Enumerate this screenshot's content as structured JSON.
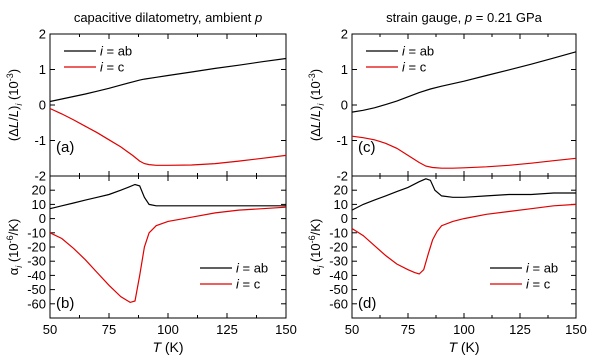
{
  "colors": {
    "ab": "#000000",
    "c": "#e00000"
  },
  "chart_data": [
    {
      "type": "line",
      "title": "capacitive dilatometry, ambient p",
      "panel_label": "(a)",
      "ylabel": "(ΔL/L)_i (10^-3)",
      "xlim": [
        50,
        150
      ],
      "ylim": [
        -2,
        2
      ],
      "xticks": [
        50,
        75,
        100,
        125,
        150
      ],
      "yticks": [
        -2,
        -1,
        0,
        1,
        2
      ],
      "legend_position": "top-left",
      "series": [
        {
          "name": "i = ab",
          "color_key": "ab",
          "x": [
            50,
            55,
            60,
            65,
            70,
            75,
            80,
            85,
            88,
            90,
            95,
            100,
            110,
            120,
            130,
            140,
            150
          ],
          "y": [
            0.1,
            0.17,
            0.24,
            0.31,
            0.39,
            0.47,
            0.56,
            0.65,
            0.7,
            0.73,
            0.78,
            0.83,
            0.93,
            1.03,
            1.12,
            1.22,
            1.31
          ]
        },
        {
          "name": "i = c",
          "color_key": "c",
          "x": [
            50,
            55,
            60,
            65,
            70,
            75,
            80,
            85,
            88,
            90,
            92,
            95,
            100,
            110,
            120,
            130,
            140,
            150
          ],
          "y": [
            -0.1,
            -0.25,
            -0.42,
            -0.6,
            -0.78,
            -0.98,
            -1.18,
            -1.42,
            -1.58,
            -1.65,
            -1.68,
            -1.7,
            -1.7,
            -1.69,
            -1.65,
            -1.58,
            -1.5,
            -1.42
          ]
        }
      ]
    },
    {
      "type": "line",
      "title": "",
      "panel_label": "(b)",
      "ylabel": "α_i (10^-6/K)",
      "xlabel": "T (K)",
      "xlim": [
        50,
        150
      ],
      "ylim": [
        -70,
        30
      ],
      "xticks": [
        50,
        75,
        100,
        125,
        150
      ],
      "yticks": [
        -60,
        -50,
        -40,
        -30,
        -20,
        -10,
        0,
        10,
        20
      ],
      "legend_position": "bottom-right",
      "series": [
        {
          "name": "i = ab",
          "color_key": "ab",
          "x": [
            50,
            55,
            60,
            65,
            70,
            75,
            80,
            83,
            86,
            88,
            90,
            92,
            95,
            100,
            110,
            120,
            130,
            140,
            150
          ],
          "y": [
            7,
            9,
            11,
            13,
            15,
            17,
            20,
            22,
            24,
            23,
            15,
            10,
            9,
            9,
            9,
            9,
            9,
            9,
            9
          ]
        },
        {
          "name": "i = c",
          "color_key": "c",
          "x": [
            50,
            55,
            60,
            65,
            70,
            75,
            80,
            84,
            86,
            88,
            90,
            92,
            95,
            100,
            110,
            120,
            130,
            140,
            150
          ],
          "y": [
            -10,
            -14,
            -21,
            -29,
            -38,
            -47,
            -55,
            -59,
            -58,
            -40,
            -20,
            -10,
            -5,
            -2,
            1,
            4,
            6,
            7,
            8
          ]
        }
      ]
    },
    {
      "type": "line",
      "title": "strain gauge, p = 0.21 GPa",
      "panel_label": "(c)",
      "ylabel": "(ΔL/L)_i (10^-3)",
      "xlim": [
        50,
        150
      ],
      "ylim": [
        -2,
        2
      ],
      "xticks": [
        50,
        75,
        100,
        125,
        150
      ],
      "yticks": [
        -2,
        -1,
        0,
        1,
        2
      ],
      "legend_position": "top-left",
      "series": [
        {
          "name": "i = ab",
          "color_key": "ab",
          "x": [
            50,
            55,
            60,
            65,
            70,
            75,
            80,
            85,
            90,
            95,
            100,
            110,
            120,
            130,
            140,
            150
          ],
          "y": [
            -0.2,
            -0.15,
            -0.08,
            0.01,
            0.11,
            0.23,
            0.35,
            0.45,
            0.53,
            0.6,
            0.67,
            0.83,
            0.99,
            1.15,
            1.32,
            1.5
          ]
        },
        {
          "name": "i = c",
          "color_key": "c",
          "x": [
            50,
            55,
            60,
            65,
            70,
            75,
            80,
            83,
            86,
            90,
            95,
            100,
            110,
            120,
            130,
            140,
            150
          ],
          "y": [
            -0.88,
            -0.92,
            -0.98,
            -1.08,
            -1.22,
            -1.42,
            -1.62,
            -1.72,
            -1.76,
            -1.78,
            -1.78,
            -1.77,
            -1.74,
            -1.7,
            -1.64,
            -1.57,
            -1.5
          ]
        }
      ]
    },
    {
      "type": "line",
      "title": "",
      "panel_label": "(d)",
      "ylabel": "α_i (10^-6/K)",
      "xlabel": "T (K)",
      "xlim": [
        50,
        150
      ],
      "ylim": [
        -70,
        30
      ],
      "xticks": [
        50,
        75,
        100,
        125,
        150
      ],
      "yticks": [
        -60,
        -50,
        -40,
        -30,
        -20,
        -10,
        0,
        10,
        20
      ],
      "legend_position": "bottom-right",
      "series": [
        {
          "name": "i = ab",
          "color_key": "ab",
          "x": [
            50,
            55,
            60,
            65,
            70,
            75,
            80,
            83,
            85,
            87,
            90,
            95,
            100,
            110,
            120,
            130,
            140,
            150
          ],
          "y": [
            6,
            10,
            13,
            16,
            19,
            22,
            26,
            28,
            27,
            20,
            16,
            15,
            15,
            16,
            17,
            17,
            18,
            18
          ]
        },
        {
          "name": "i = c",
          "color_key": "c",
          "x": [
            50,
            55,
            60,
            65,
            70,
            75,
            78,
            80,
            82,
            84,
            86,
            88,
            90,
            95,
            100,
            110,
            120,
            130,
            140,
            150
          ],
          "y": [
            -7,
            -12,
            -19,
            -26,
            -32,
            -36,
            -38,
            -39,
            -36,
            -25,
            -15,
            -9,
            -5,
            -2,
            0,
            3,
            5,
            7,
            9,
            10
          ]
        }
      ]
    }
  ]
}
